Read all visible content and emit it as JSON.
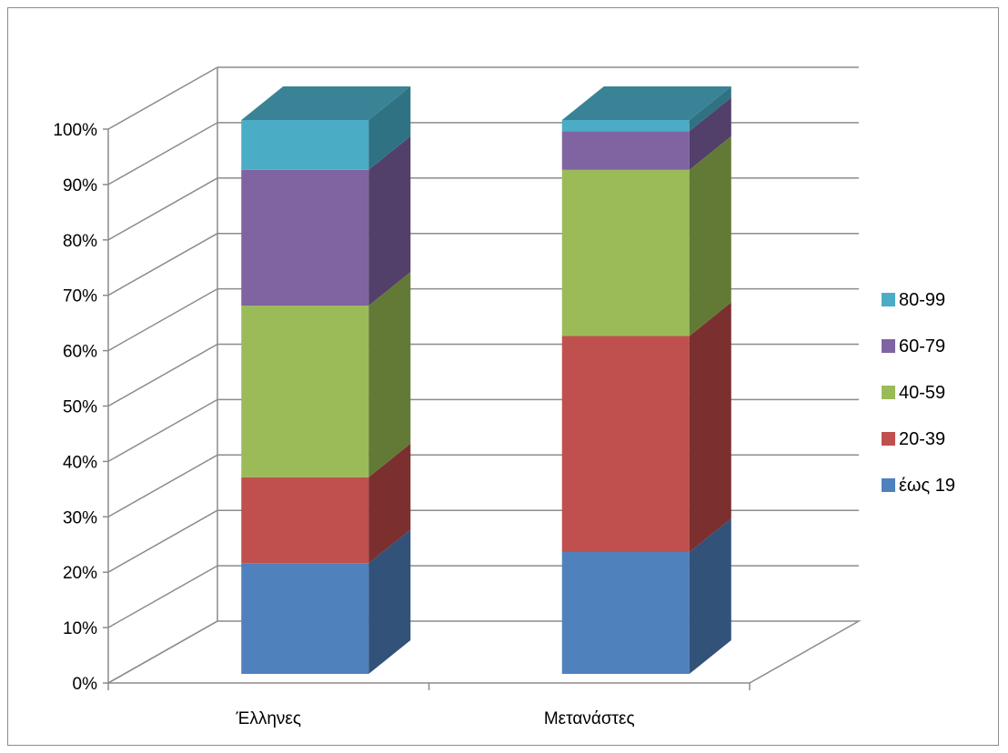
{
  "chart_data": {
    "type": "bar",
    "stacked": true,
    "percent": true,
    "three_d": true,
    "title": "",
    "xlabel": "",
    "ylabel": "",
    "ylim": [
      0,
      100
    ],
    "yticks": [
      "0%",
      "10%",
      "20%",
      "30%",
      "40%",
      "50%",
      "60%",
      "70%",
      "80%",
      "90%",
      "100%"
    ],
    "categories": [
      "Έλληνες",
      "Μετανάστες"
    ],
    "series": [
      {
        "name": "έως 19",
        "color": "#4F81BD",
        "side": "#32527A",
        "top": "#6992C9",
        "values": [
          20,
          22
        ]
      },
      {
        "name": "20-39",
        "color": "#C0504D",
        "side": "#7B2F2E",
        "top": "#CD6D6A",
        "values": [
          15.5,
          39
        ]
      },
      {
        "name": "40-59",
        "color": "#9BBB59",
        "side": "#637A36",
        "top": "#B0C97C",
        "values": [
          31,
          30
        ]
      },
      {
        "name": "60-79",
        "color": "#8064A2",
        "side": "#523F6A",
        "top": "#957EB4",
        "values": [
          24.5,
          7
        ]
      },
      {
        "name": "80-99",
        "color": "#4BACC6",
        "side": "#2F7284",
        "top": "#3A8396",
        "values": [
          9,
          2
        ]
      }
    ],
    "grid": true,
    "legend_position": "right"
  }
}
